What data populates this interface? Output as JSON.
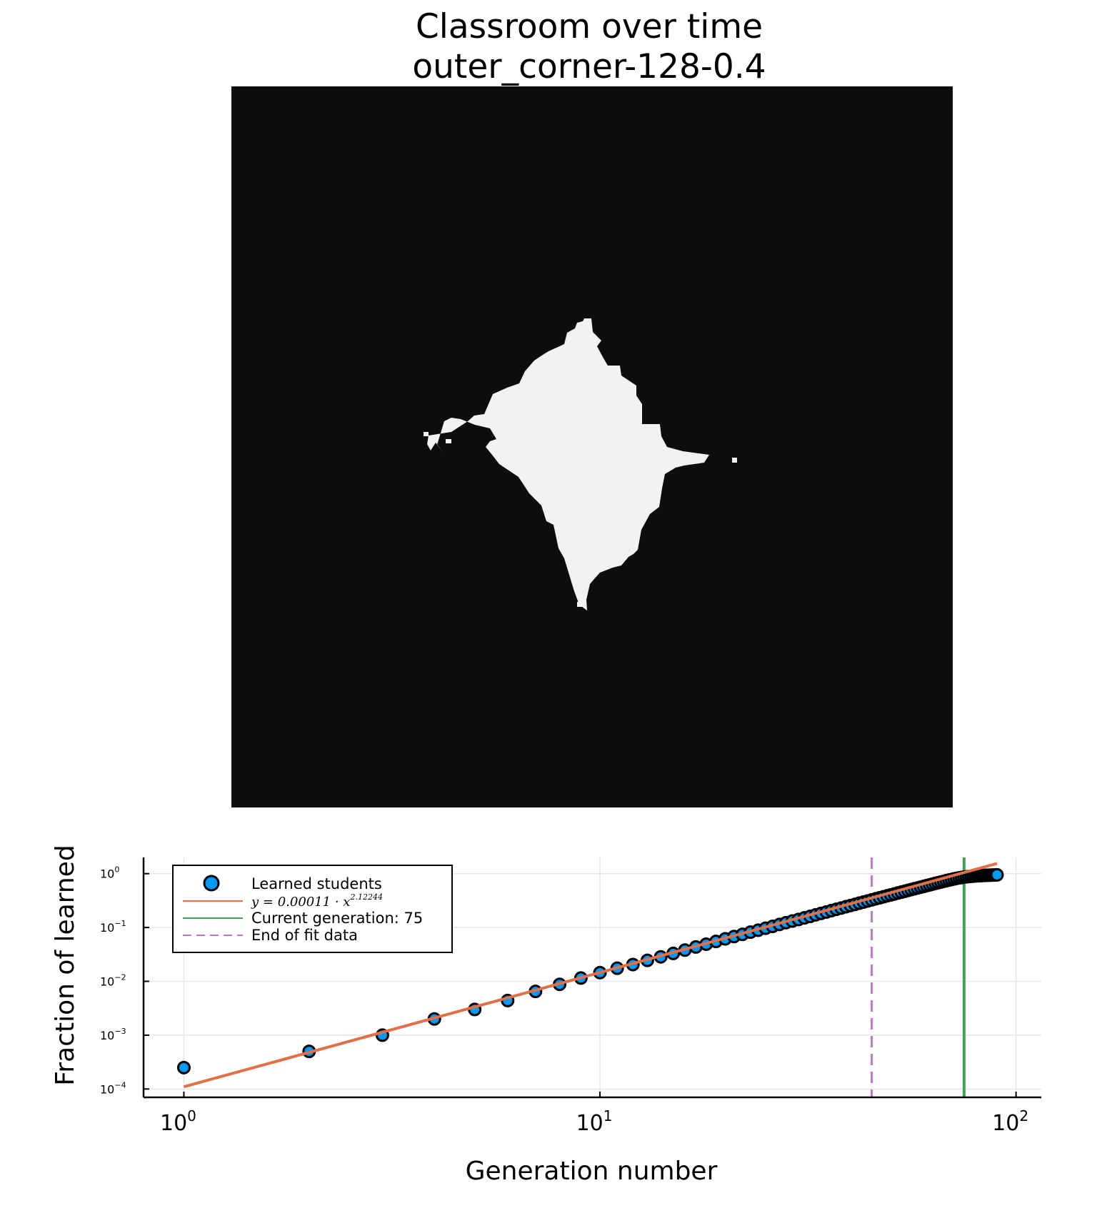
{
  "figure": {
    "title_line1": "Classroom over time",
    "title_line2": "outer_corner-128-0.4"
  },
  "heatmap": {
    "background_color": "#0d0d0d",
    "learned_color": "#f2f2f2",
    "grid_size": 128
  },
  "chart_data": {
    "type": "scatter",
    "x_scale": "log",
    "y_scale": "log",
    "xlabel": "Generation number",
    "ylabel": "Fraction of learned",
    "xlim": [
      0.8,
      115
    ],
    "ylim": [
      7e-05,
      2.0
    ],
    "x_ticks": [
      {
        "value": 1,
        "base": "10",
        "exp": "0"
      },
      {
        "value": 10,
        "base": "10",
        "exp": "1"
      },
      {
        "value": 100,
        "base": "10",
        "exp": "2"
      }
    ],
    "y_ticks": [
      {
        "value": 0.0001,
        "base": "10",
        "exp": "−4"
      },
      {
        "value": 0.001,
        "base": "10",
        "exp": "−3"
      },
      {
        "value": 0.01,
        "base": "10",
        "exp": "−2"
      },
      {
        "value": 0.1,
        "base": "10",
        "exp": "−1"
      },
      {
        "value": 1,
        "base": "10",
        "exp": "0"
      }
    ],
    "grid": true,
    "legend_position": "top-left",
    "series": [
      {
        "name": "Learned students",
        "kind": "scatter",
        "color": "#009af9",
        "x": [
          1,
          2,
          3,
          4,
          5,
          6,
          7,
          8,
          9,
          10,
          11,
          12,
          13,
          14,
          15,
          16,
          17,
          18,
          19,
          20,
          21,
          22,
          23,
          24,
          25,
          26,
          27,
          28,
          29,
          30,
          31,
          32,
          33,
          34,
          35,
          36,
          37,
          38,
          39,
          40,
          41,
          42,
          43,
          44,
          45,
          46,
          47,
          48,
          49,
          50,
          51,
          52,
          53,
          54,
          55,
          56,
          57,
          58,
          59,
          60,
          61,
          62,
          63,
          64,
          65,
          66,
          67,
          68,
          69,
          70,
          71,
          72,
          73,
          74,
          75,
          76,
          77,
          78,
          79,
          80,
          81,
          82,
          83,
          84,
          85,
          86,
          87,
          88,
          89,
          90
        ],
        "y": [
          0.00025,
          0.0005,
          0.001,
          0.002,
          0.003,
          0.0044,
          0.0065,
          0.0088,
          0.0115,
          0.0145,
          0.0175,
          0.0205,
          0.0245,
          0.0285,
          0.033,
          0.038,
          0.0435,
          0.049,
          0.055,
          0.0615,
          0.068,
          0.0745,
          0.082,
          0.089,
          0.097,
          0.105,
          0.114,
          0.123,
          0.132,
          0.141,
          0.151,
          0.161,
          0.172,
          0.183,
          0.194,
          0.206,
          0.218,
          0.23,
          0.243,
          0.256,
          0.269,
          0.283,
          0.297,
          0.311,
          0.326,
          0.341,
          0.356,
          0.372,
          0.388,
          0.404,
          0.42,
          0.437,
          0.454,
          0.471,
          0.489,
          0.507,
          0.525,
          0.543,
          0.562,
          0.581,
          0.6,
          0.62,
          0.64,
          0.66,
          0.68,
          0.7,
          0.72,
          0.74,
          0.76,
          0.78,
          0.8,
          0.82,
          0.835,
          0.85,
          0.865,
          0.875,
          0.885,
          0.893,
          0.9,
          0.907,
          0.913,
          0.918,
          0.923,
          0.928,
          0.932,
          0.936,
          0.94,
          0.943,
          0.946,
          0.95
        ]
      },
      {
        "name": "y = 0.00011 · x^2.12244",
        "kind": "line",
        "color": "#e26f46",
        "coefficient": 0.00011,
        "exponent": 2.12244
      },
      {
        "name": "Current generation: 75",
        "kind": "vline",
        "color": "#3da44d",
        "x_value": 75
      },
      {
        "name": "End of fit data",
        "kind": "vline-dashed",
        "color": "#c271d2",
        "x_value": 45
      }
    ]
  }
}
